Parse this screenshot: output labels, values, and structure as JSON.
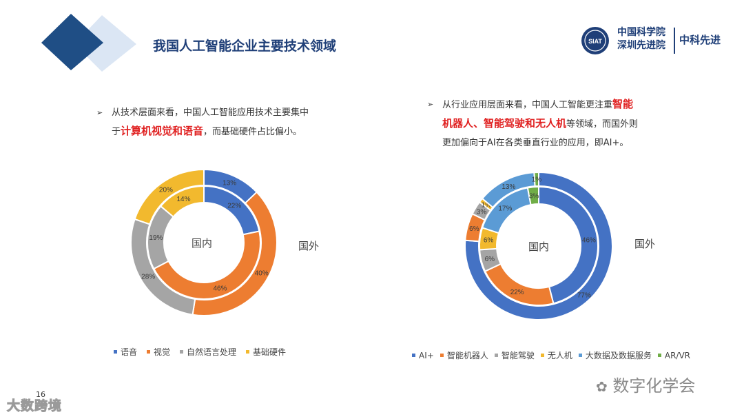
{
  "header": {
    "title": "我国人工智能企业主要技术领域",
    "logo_emblem_text": "SIAT",
    "logo_name_line1": "中国科学院",
    "logo_name_line2": "深圳先进院",
    "logo_short": "中科先进"
  },
  "left_text": {
    "line1": "从技术层面来看，中国人工智能应用技术主要集中",
    "line2_pre": "于",
    "line2_hl": "计算机视觉和语音",
    "line2_post": "，而基础硬件占比偏小。"
  },
  "right_text": {
    "line1_pre": "从行业应用层面来看，中国人工智能更注重",
    "line1_hl": "智能",
    "line2_hl": "机器人、智能驾驶和无人机",
    "line2_post": "等领域，而国外则",
    "line3": "更加偏向于AI在各类垂直行业的应用，即AI+。"
  },
  "footer": {
    "page_number": "16",
    "watermark_left": "大数跨境",
    "watermark_right": "数字化学会"
  },
  "chart_data": [
    {
      "type": "donut",
      "inner_label": "国内",
      "outer_label": "国外",
      "categories": [
        "语音",
        "视觉",
        "自然语言处理",
        "基础硬件"
      ],
      "colors": [
        "#4472c4",
        "#ed7d31",
        "#a5a5a5",
        "#f2b92e"
      ],
      "series": [
        {
          "name": "国内",
          "ring": "inner",
          "values": [
            22,
            46,
            19,
            14
          ]
        },
        {
          "name": "国外",
          "ring": "outer",
          "values": [
            13,
            40,
            28,
            20
          ]
        }
      ]
    },
    {
      "type": "donut",
      "inner_label": "国内",
      "outer_label": "国外",
      "categories": [
        "AI+",
        "智能机器人",
        "智能驾驶",
        "无人机",
        "大数据及数据服务",
        "AR/VR"
      ],
      "colors": [
        "#4472c4",
        "#ed7d31",
        "#a5a5a5",
        "#f2b92e",
        "#5b9bd5",
        "#70ad47"
      ],
      "series": [
        {
          "name": "国内",
          "ring": "inner",
          "values": [
            46,
            22,
            6,
            6,
            17,
            3
          ]
        },
        {
          "name": "国外",
          "ring": "outer",
          "values": [
            77,
            6,
            3,
            1,
            13,
            1
          ]
        }
      ]
    }
  ]
}
